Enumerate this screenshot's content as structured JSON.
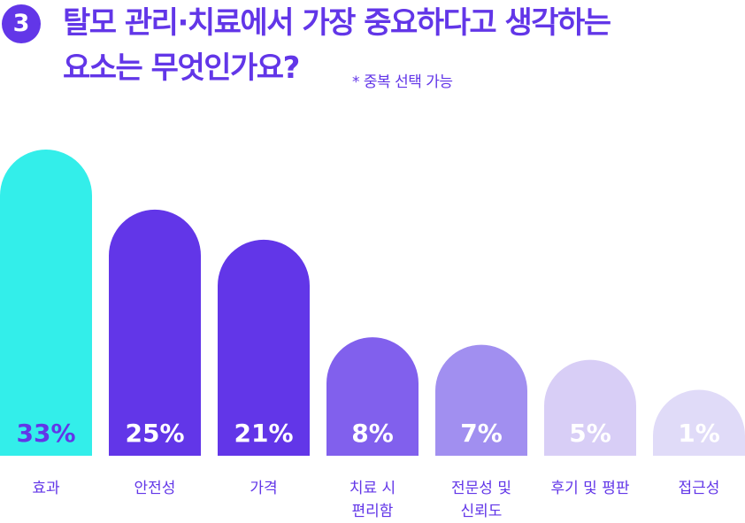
{
  "header": {
    "number": "3",
    "title_line1": "탈모 관리·치료에서 가장 중요하다고 생각하는",
    "title_line2": "요소는 무엇인가요?",
    "note": "* 중복 선택 가능"
  },
  "colors": {
    "accent": "#6236e8",
    "bars": [
      "#33eeea",
      "#6236e8",
      "#6236e8",
      "#8160ed",
      "#a18ff0",
      "#d8cef6",
      "#e0dbf8"
    ],
    "value_labels": [
      "#6236e8",
      "#ffffff",
      "#ffffff",
      "#ffffff",
      "#ffffff",
      "#ffffff",
      "#ffffff"
    ]
  },
  "chart_data": {
    "type": "bar",
    "title": "탈모 관리·치료에서 가장 중요하다고 생각하는 요소는 무엇인가요?",
    "unit": "%",
    "categories": [
      "효과",
      "안전성",
      "가격",
      "치료 시 편리함",
      "전문성 및 신뢰도",
      "후기 및 평판",
      "접근성"
    ],
    "category_lines": [
      [
        "효과"
      ],
      [
        "안전성"
      ],
      [
        "가격"
      ],
      [
        "치료 시",
        "편리함"
      ],
      [
        "전문성 및",
        "신뢰도"
      ],
      [
        "후기 및 평판"
      ],
      [
        "접근성"
      ]
    ],
    "values": [
      33,
      25,
      21,
      8,
      7,
      5,
      1
    ],
    "value_labels": [
      "33%",
      "25%",
      "21%",
      "8%",
      "7%",
      "5%",
      "1%"
    ],
    "grid": false,
    "legend": "none"
  }
}
